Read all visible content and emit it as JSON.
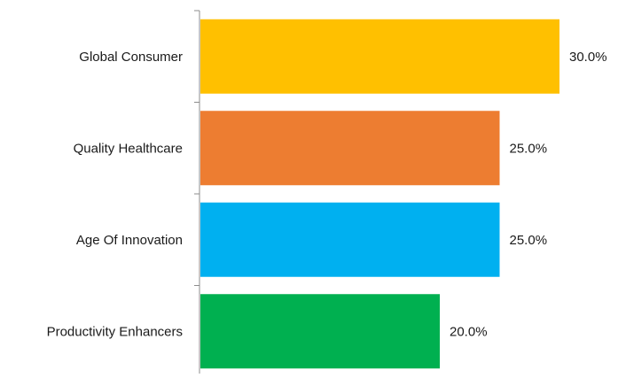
{
  "chart_data": {
    "type": "bar",
    "orientation": "horizontal",
    "categories": [
      "Global Consumer",
      "Quality Healthcare",
      "Age Of Innovation",
      "Productivity Enhancers"
    ],
    "values": [
      30.0,
      25.0,
      25.0,
      20.0
    ],
    "value_labels": [
      "30.0%",
      "25.0%",
      "25.0%",
      "20.0%"
    ],
    "colors": [
      "#FFC000",
      "#ED7D31",
      "#00B0F0",
      "#00B050"
    ],
    "xlim": [
      0,
      30
    ],
    "grid": false,
    "title": "",
    "xlabel": "",
    "ylabel": ""
  }
}
